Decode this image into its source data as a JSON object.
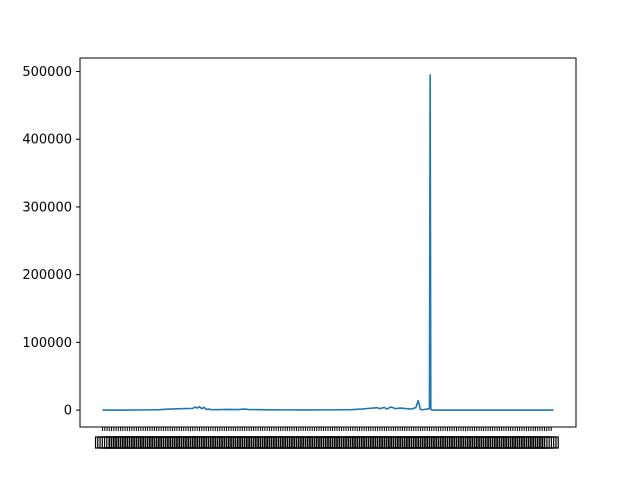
{
  "chart_data": {
    "type": "line",
    "title": "",
    "xlabel": "",
    "ylabel": "",
    "ylim": [
      -25000,
      520000
    ],
    "yticks": [
      0,
      100000,
      200000,
      300000,
      400000,
      500000
    ],
    "ytick_labels": [
      "0",
      "100000",
      "200000",
      "300000",
      "400000",
      "500000"
    ],
    "xlim": [
      -10,
      210
    ],
    "x_tick_count": 200,
    "x_ticklabels_note": "dense overlapping x tick labels rendered illegible",
    "grid": false,
    "legend": "none",
    "series_color": "#1f77b4",
    "series": [
      {
        "x": [
          0,
          10,
          20,
          25,
          30,
          35,
          40,
          41,
          42,
          43,
          44,
          45,
          46,
          47,
          48,
          50,
          55,
          60,
          63,
          65,
          70,
          75,
          80,
          90,
          100,
          110,
          115,
          118,
          120,
          122,
          123,
          125,
          126,
          128,
          130,
          132,
          135,
          137,
          138,
          139,
          140,
          141,
          142,
          145,
          145.3,
          145.6,
          146,
          148,
          150,
          160,
          170,
          180,
          190,
          200
        ],
        "values": [
          0,
          0,
          300,
          600,
          1500,
          2000,
          2500,
          4500,
          3000,
          5000,
          2000,
          4000,
          1000,
          1500,
          800,
          500,
          900,
          700,
          1500,
          800,
          500,
          400,
          300,
          200,
          300,
          500,
          1500,
          2500,
          3000,
          3500,
          2000,
          4000,
          1500,
          4500,
          2000,
          3000,
          2000,
          1500,
          2500,
          4000,
          14000,
          1000,
          500,
          2000,
          495000,
          2000,
          0,
          0,
          0,
          0,
          0,
          0,
          0,
          0
        ]
      }
    ]
  }
}
